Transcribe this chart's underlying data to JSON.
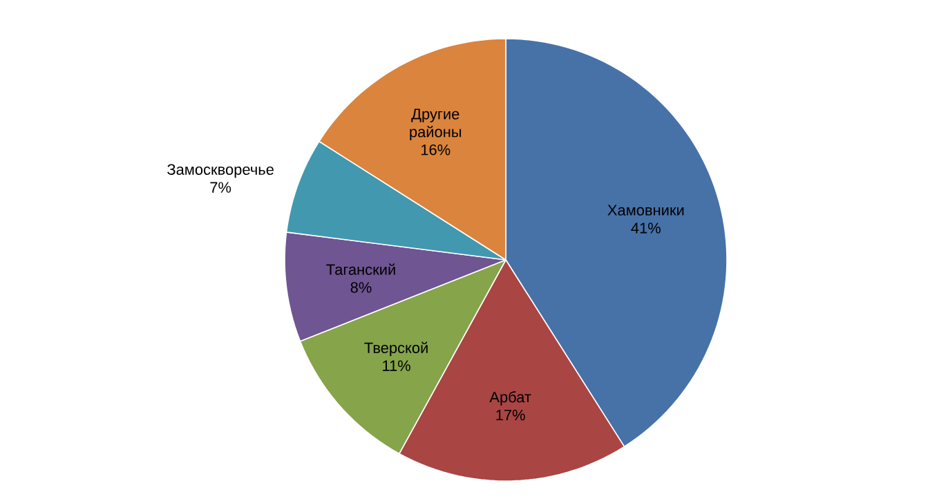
{
  "chart_data": {
    "type": "pie",
    "categories": [
      "Хамовники",
      "Арбат",
      "Тверской",
      "Таганский",
      "Замоскворечье",
      "Другие районы"
    ],
    "values": [
      41,
      17,
      11,
      8,
      7,
      16
    ],
    "value_labels": [
      "41%",
      "17%",
      "11%",
      "8%",
      "7%",
      "16%"
    ],
    "colors": [
      "#4672a8",
      "#a94543",
      "#86a44a",
      "#6f5592",
      "#4298af",
      "#db843d"
    ],
    "legend": false
  }
}
